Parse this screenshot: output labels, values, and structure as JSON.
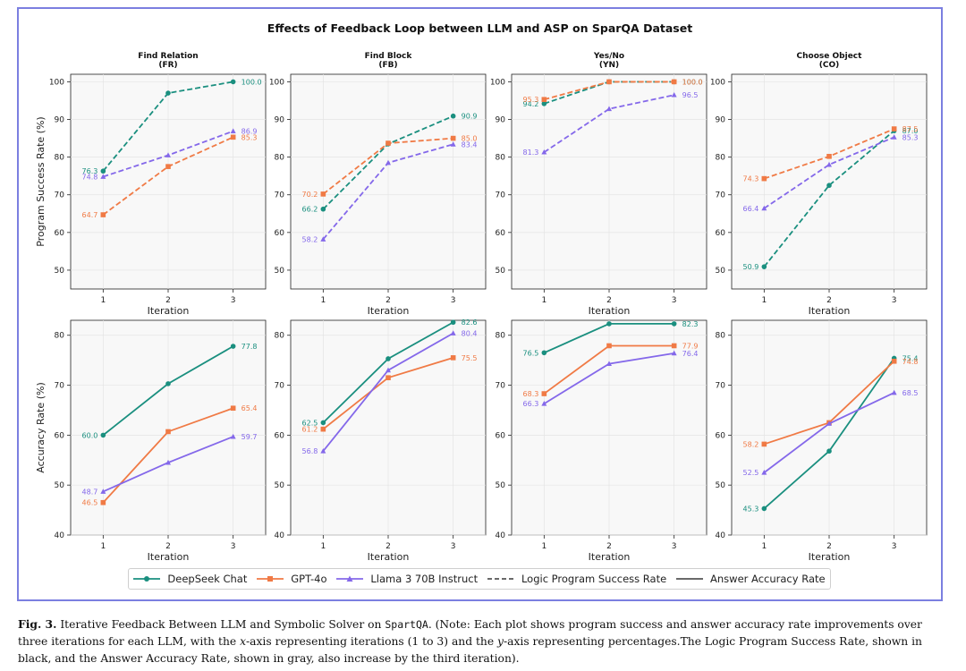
{
  "title": "Effects of Feedback Loop between LLM and ASP on SparQA Dataset",
  "colors": {
    "deepseek": "#1a8f7f",
    "gpt4o": "#f07a45",
    "llama": "#8468ea",
    "gridline": "#e4e4e4",
    "panel_bg": "#f8f8f8"
  },
  "legend": {
    "items": [
      {
        "label": "DeepSeek Chat",
        "color": "#1a8f7f",
        "marker": "circle",
        "style": "solid"
      },
      {
        "label": "GPT-4o",
        "color": "#f07a45",
        "marker": "square",
        "style": "solid"
      },
      {
        "label": "Llama 3 70B Instruct",
        "color": "#8468ea",
        "marker": "triangle",
        "style": "solid"
      },
      {
        "label": "Logic Program Success Rate",
        "color": "#555555",
        "marker": "none",
        "style": "dashed"
      },
      {
        "label": "Answer Accuracy Rate",
        "color": "#555555",
        "marker": "none",
        "style": "solid"
      }
    ]
  },
  "caption": {
    "fig_label": "Fig. 3.",
    "text_1": " Iterative Feedback Between LLM and Symbolic Solver on ",
    "dataset": "SpartQA",
    "text_2": ". (Note: Each plot shows program success and answer accuracy rate improvements over three iterations for each LLM, with the ",
    "x_axis": "x",
    "text_3": "-axis representing iterations (1 to 3) and the ",
    "y_axis": "y",
    "text_4": "-axis representing percentages.The Logic Program Success Rate, shown in black, and the Answer Accuracy Rate, shown in gray, also increase by the third iteration)."
  },
  "chart_data": [
    {
      "type": "line",
      "row": "program",
      "title": "Find Relation",
      "subtitle": "(FR)",
      "xlabel": "Iteration",
      "ylabel": "Program Success Rate (%)",
      "line_style": "dashed",
      "x": [
        1,
        2,
        3
      ],
      "xticks": [
        "1",
        "2",
        "3"
      ],
      "ylim": [
        45,
        102
      ],
      "yticks": [
        50,
        60,
        70,
        80,
        90,
        100
      ],
      "grid": true,
      "series": [
        {
          "name": "DeepSeek Chat",
          "values": [
            76.3,
            97,
            100.0
          ],
          "labels": [
            "76.3",
            "",
            "100.0"
          ]
        },
        {
          "name": "GPT-4o",
          "values": [
            64.7,
            77.5,
            85.3
          ],
          "labels": [
            "64.7",
            "",
            "85.3"
          ]
        },
        {
          "name": "Llama 3 70B Instruct",
          "values": [
            74.8,
            80.5,
            86.9
          ],
          "labels": [
            "74.8",
            "",
            "86.9"
          ]
        }
      ]
    },
    {
      "type": "line",
      "row": "program",
      "title": "Find Block",
      "subtitle": "(FB)",
      "xlabel": "Iteration",
      "ylabel": "",
      "line_style": "dashed",
      "x": [
        1,
        2,
        3
      ],
      "xticks": [
        "1",
        "2",
        "3"
      ],
      "ylim": [
        45,
        102
      ],
      "yticks": [
        50,
        60,
        70,
        80,
        90,
        100
      ],
      "grid": true,
      "series": [
        {
          "name": "DeepSeek Chat",
          "values": [
            66.2,
            83.5,
            90.9
          ],
          "labels": [
            "66.2",
            "",
            "90.9"
          ]
        },
        {
          "name": "GPT-4o",
          "values": [
            70.2,
            83.7,
            85.0
          ],
          "labels": [
            "70.2",
            "",
            "85.0"
          ]
        },
        {
          "name": "Llama 3 70B Instruct",
          "values": [
            58.2,
            78.5,
            83.4
          ],
          "labels": [
            "58.2",
            "",
            "83.4"
          ]
        }
      ]
    },
    {
      "type": "line",
      "row": "program",
      "title": "Yes/No",
      "subtitle": "(YN)",
      "xlabel": "Iteration",
      "ylabel": "",
      "line_style": "dashed",
      "x": [
        1,
        2,
        3
      ],
      "xticks": [
        "1",
        "2",
        "3"
      ],
      "ylim": [
        45,
        102
      ],
      "yticks": [
        50,
        60,
        70,
        80,
        90,
        100
      ],
      "grid": true,
      "series": [
        {
          "name": "DeepSeek Chat",
          "values": [
            94.2,
            100,
            100.0
          ],
          "labels": [
            "94.2",
            "",
            "100.0"
          ]
        },
        {
          "name": "GPT-4o",
          "values": [
            95.3,
            100,
            100.0
          ],
          "labels": [
            "95.3",
            "",
            "100.0"
          ]
        },
        {
          "name": "Llama 3 70B Instruct",
          "values": [
            81.3,
            92.8,
            96.5
          ],
          "labels": [
            "81.3",
            "",
            "96.5"
          ]
        }
      ]
    },
    {
      "type": "line",
      "row": "program",
      "title": "Choose Object",
      "subtitle": "(CO)",
      "xlabel": "Iteration",
      "ylabel": "",
      "line_style": "dashed",
      "x": [
        1,
        2,
        3
      ],
      "xticks": [
        "1",
        "2",
        "3"
      ],
      "ylim": [
        45,
        102
      ],
      "yticks": [
        50,
        60,
        70,
        80,
        90,
        100
      ],
      "grid": true,
      "series": [
        {
          "name": "DeepSeek Chat",
          "values": [
            50.9,
            72.5,
            87.0
          ],
          "labels": [
            "50.9",
            "",
            "87.0"
          ]
        },
        {
          "name": "GPT-4o",
          "values": [
            74.3,
            80.2,
            87.5
          ],
          "labels": [
            "74.3",
            "",
            "87.5"
          ]
        },
        {
          "name": "Llama 3 70B Instruct",
          "values": [
            66.4,
            78.0,
            85.3
          ],
          "labels": [
            "66.4",
            "",
            "85.3"
          ]
        }
      ]
    },
    {
      "type": "line",
      "row": "accuracy",
      "title": "",
      "subtitle": "",
      "xlabel": "Iteration",
      "ylabel": "Accuracy Rate (%)",
      "line_style": "solid",
      "x": [
        1,
        2,
        3
      ],
      "xticks": [
        "1",
        "2",
        "3"
      ],
      "ylim": [
        40,
        83
      ],
      "yticks": [
        40,
        50,
        60,
        70,
        80
      ],
      "grid": true,
      "series": [
        {
          "name": "DeepSeek Chat",
          "values": [
            60.0,
            70.3,
            77.8
          ],
          "labels": [
            "60.0",
            "",
            "77.8"
          ]
        },
        {
          "name": "GPT-4o",
          "values": [
            46.5,
            60.7,
            65.4
          ],
          "labels": [
            "46.5",
            "",
            "65.4"
          ]
        },
        {
          "name": "Llama 3 70B Instruct",
          "values": [
            48.7,
            54.5,
            59.7
          ],
          "labels": [
            "48.7",
            "",
            "59.7"
          ]
        }
      ]
    },
    {
      "type": "line",
      "row": "accuracy",
      "title": "",
      "subtitle": "",
      "xlabel": "Iteration",
      "ylabel": "",
      "line_style": "solid",
      "x": [
        1,
        2,
        3
      ],
      "xticks": [
        "1",
        "2",
        "3"
      ],
      "ylim": [
        40,
        83
      ],
      "yticks": [
        40,
        50,
        60,
        70,
        80
      ],
      "grid": true,
      "series": [
        {
          "name": "DeepSeek Chat",
          "values": [
            62.5,
            75.3,
            82.6
          ],
          "labels": [
            "62.5",
            "",
            "82.6"
          ]
        },
        {
          "name": "GPT-4o",
          "values": [
            61.2,
            71.5,
            75.5
          ],
          "labels": [
            "61.2",
            "",
            "75.5"
          ]
        },
        {
          "name": "Llama 3 70B Instruct",
          "values": [
            56.8,
            73.0,
            80.4
          ],
          "labels": [
            "56.8",
            "",
            "80.4"
          ]
        }
      ]
    },
    {
      "type": "line",
      "row": "accuracy",
      "title": "",
      "subtitle": "",
      "xlabel": "Iteration",
      "ylabel": "",
      "line_style": "solid",
      "x": [
        1,
        2,
        3
      ],
      "xticks": [
        "1",
        "2",
        "3"
      ],
      "ylim": [
        40,
        83
      ],
      "yticks": [
        40,
        50,
        60,
        70,
        80
      ],
      "grid": true,
      "series": [
        {
          "name": "DeepSeek Chat",
          "values": [
            76.5,
            82.3,
            82.3
          ],
          "labels": [
            "76.5",
            "",
            "82.3"
          ]
        },
        {
          "name": "GPT-4o",
          "values": [
            68.3,
            77.9,
            77.9
          ],
          "labels": [
            "68.3",
            "",
            "77.9"
          ]
        },
        {
          "name": "Llama 3 70B Instruct",
          "values": [
            66.3,
            74.3,
            76.4
          ],
          "labels": [
            "66.3",
            "",
            "76.4"
          ]
        }
      ]
    },
    {
      "type": "line",
      "row": "accuracy",
      "title": "",
      "subtitle": "",
      "xlabel": "Iteration",
      "ylabel": "",
      "line_style": "solid",
      "x": [
        1,
        2,
        3
      ],
      "xticks": [
        "1",
        "2",
        "3"
      ],
      "ylim": [
        40,
        83
      ],
      "yticks": [
        40,
        50,
        60,
        70,
        80
      ],
      "grid": true,
      "series": [
        {
          "name": "DeepSeek Chat",
          "values": [
            45.3,
            56.8,
            75.4
          ],
          "labels": [
            "45.3",
            "",
            "75.4"
          ]
        },
        {
          "name": "GPT-4o",
          "values": [
            58.2,
            62.5,
            74.8
          ],
          "labels": [
            "58.2",
            "",
            "74.8"
          ]
        },
        {
          "name": "Llama 3 70B Instruct",
          "values": [
            52.5,
            62.3,
            68.5
          ],
          "labels": [
            "52.5",
            "",
            "68.5"
          ]
        }
      ]
    }
  ]
}
